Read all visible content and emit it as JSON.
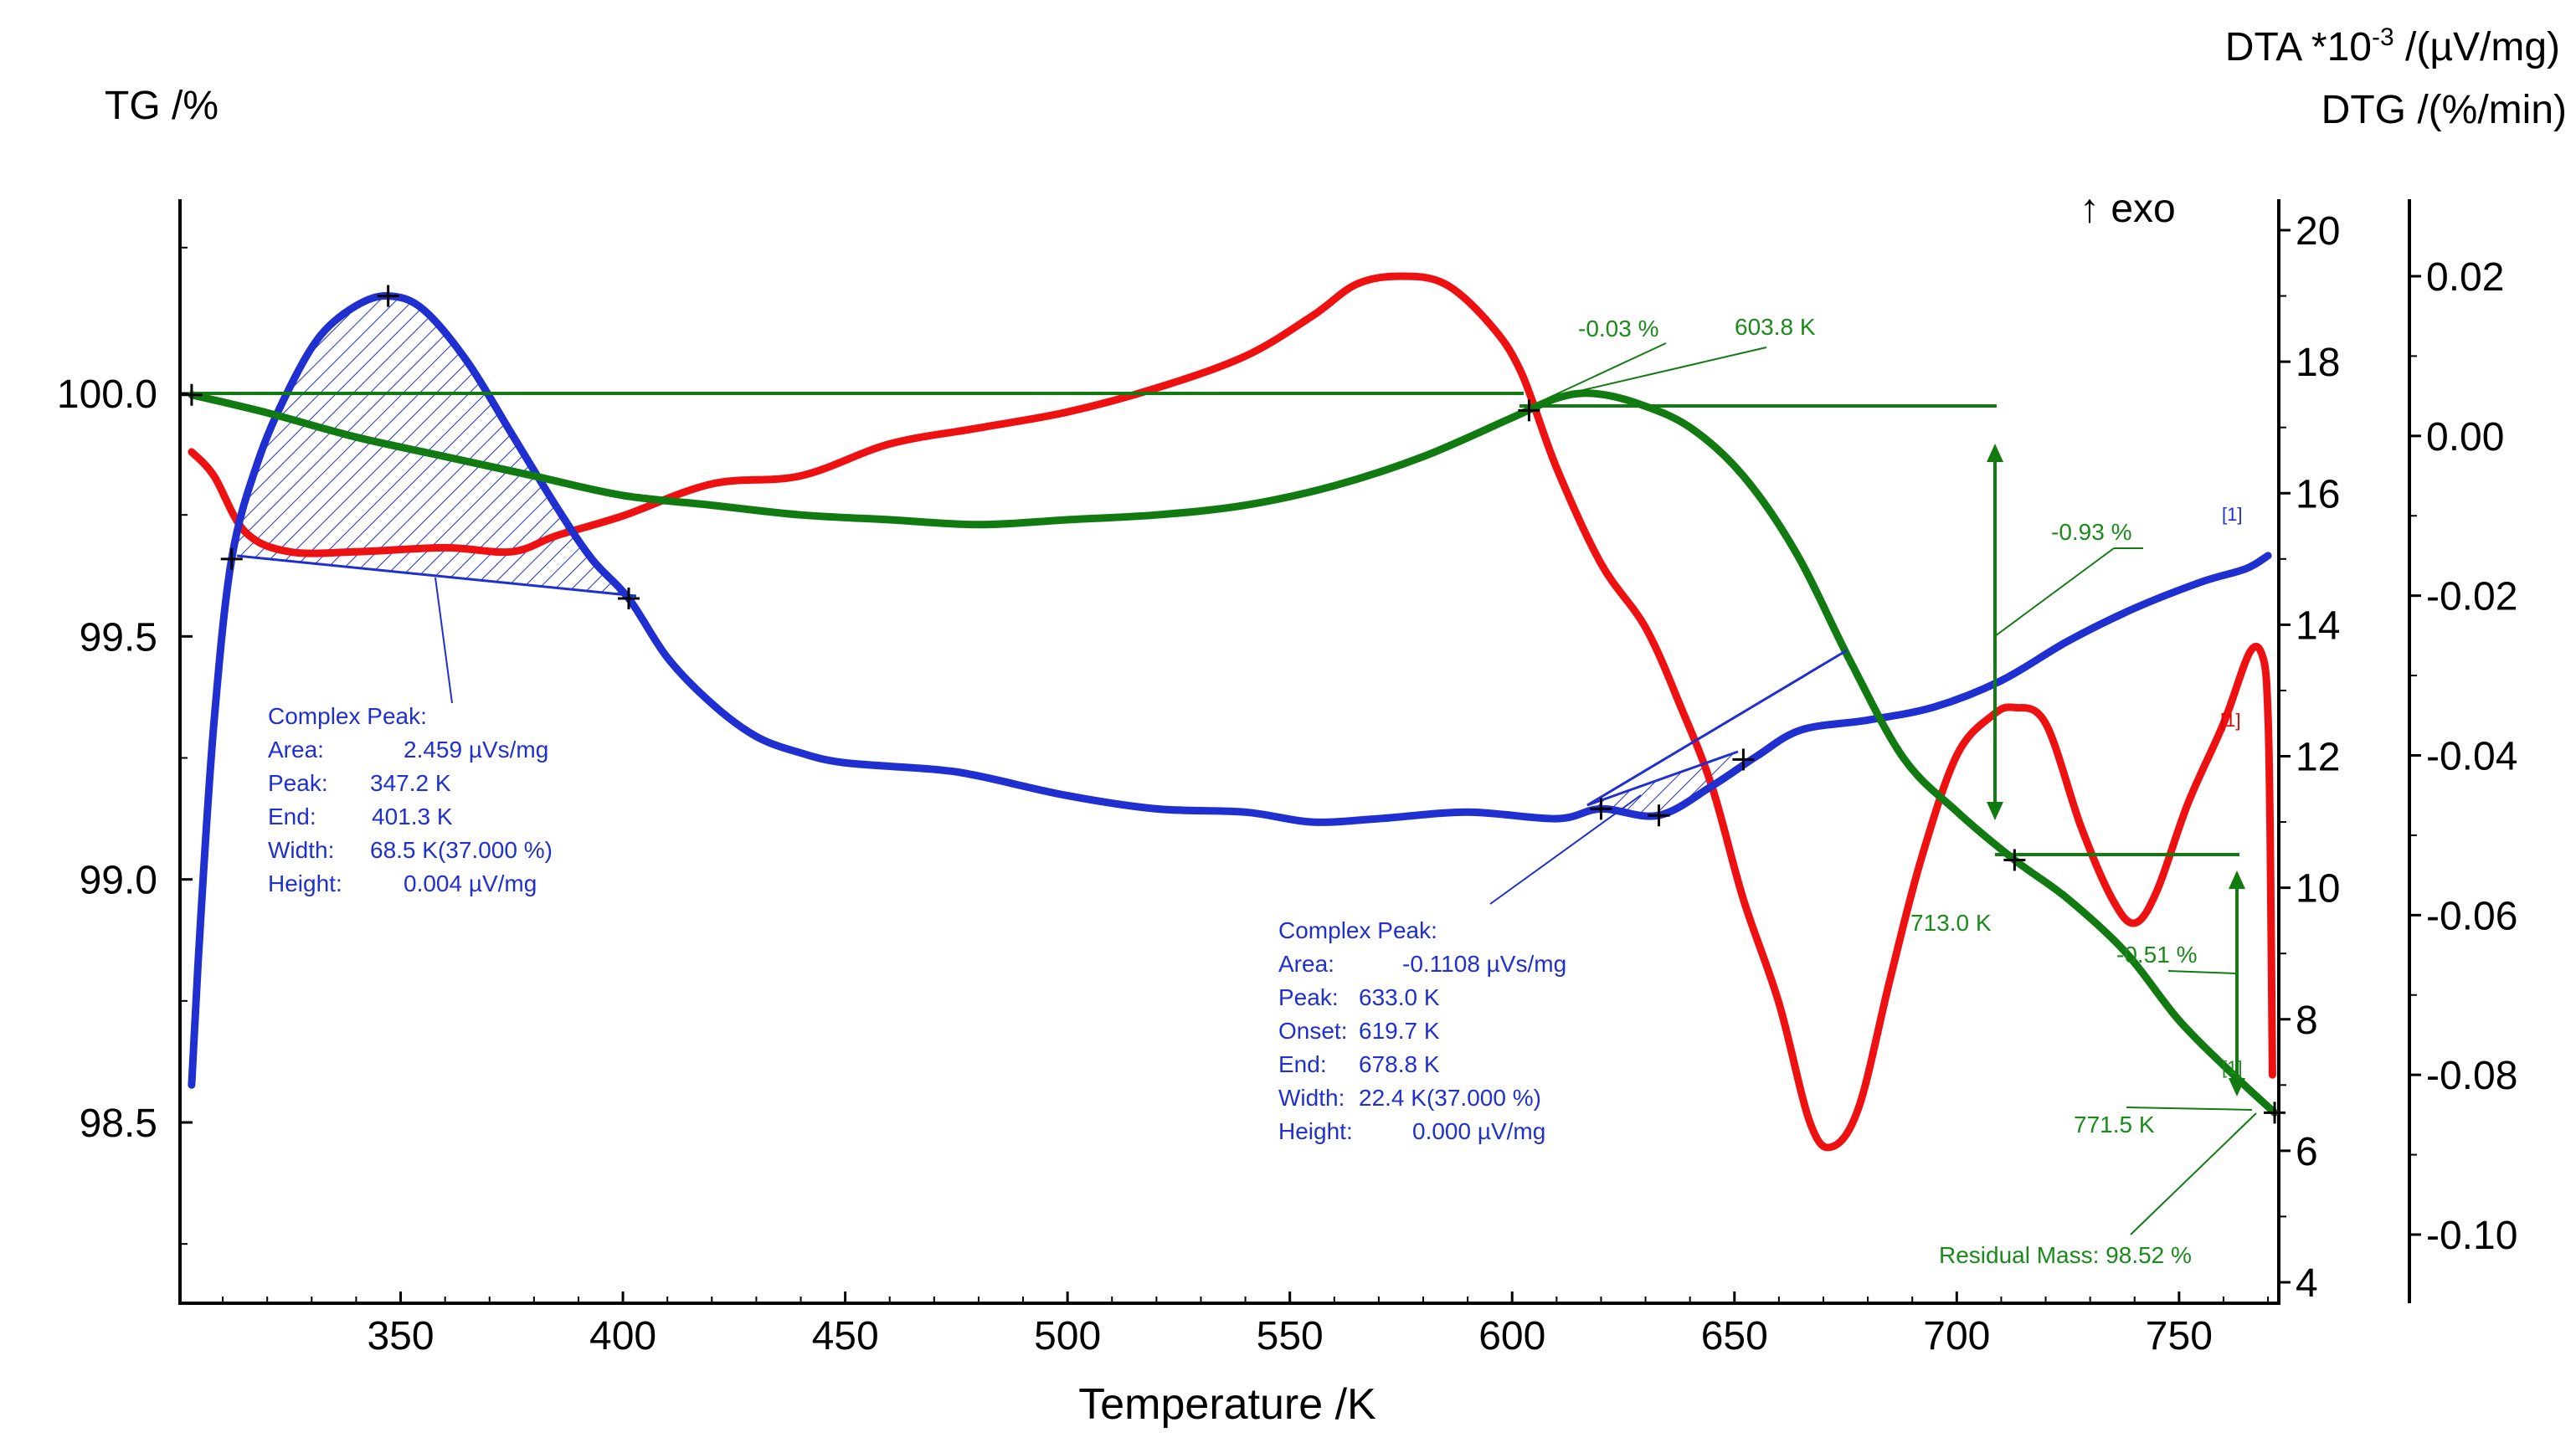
{
  "chart_data": {
    "type": "line",
    "xlabel": "Temperature /K",
    "x_ticks": [
      "350",
      "400",
      "450",
      "500",
      "550",
      "600",
      "650",
      "700",
      "750"
    ],
    "xlim": [
      300,
      773
    ],
    "axes": {
      "tg": {
        "title": "TG /%",
        "ticks": [
          "100.0",
          "99.5",
          "99.0",
          "98.5"
        ],
        "range": [
          98.2,
          100.4
        ]
      },
      "dta": {
        "title": "DTA *10-3 /(µV/mg)",
        "title_main": "DTA *10",
        "title_sup": "-3",
        "title_tail": " /(µV/mg)",
        "ticks": [
          "20",
          "18",
          "16",
          "14",
          "12",
          "10",
          "8",
          "6",
          "4"
        ],
        "range": [
          3.5,
          20.5
        ]
      },
      "dtg": {
        "title": "DTG /(%/min)",
        "ticks": [
          "0.02",
          "0.00",
          "-0.02",
          "-0.04",
          "-0.06",
          "-0.08",
          "-0.10"
        ],
        "range": [
          -0.113,
          0.028
        ]
      }
    },
    "exo_label": "↑ exo",
    "series": [
      {
        "name": "TG",
        "axis": "tg",
        "color": "#117a11",
        "points": [
          [
            303,
            99.997
          ],
          [
            320,
            99.96
          ],
          [
            340,
            99.91
          ],
          [
            360,
            99.87
          ],
          [
            380,
            99.83
          ],
          [
            400,
            99.79
          ],
          [
            420,
            99.77
          ],
          [
            440,
            99.75
          ],
          [
            460,
            99.74
          ],
          [
            480,
            99.73
          ],
          [
            500,
            99.74
          ],
          [
            520,
            99.75
          ],
          [
            540,
            99.77
          ],
          [
            560,
            99.81
          ],
          [
            580,
            99.87
          ],
          [
            600,
            99.95
          ],
          [
            610,
            99.99
          ],
          [
            618,
            100.0
          ],
          [
            628,
            99.98
          ],
          [
            640,
            99.93
          ],
          [
            652,
            99.83
          ],
          [
            664,
            99.67
          ],
          [
            676,
            99.45
          ],
          [
            688,
            99.25
          ],
          [
            700,
            99.14
          ],
          [
            713,
            99.04
          ],
          [
            725,
            98.96
          ],
          [
            738,
            98.85
          ],
          [
            750,
            98.71
          ],
          [
            762,
            98.6
          ],
          [
            771.5,
            98.52
          ]
        ]
      },
      {
        "name": "DTA",
        "axis": "dta",
        "color": "#1f2fd0",
        "points": [
          [
            303,
            7.0
          ],
          [
            305,
            9.5
          ],
          [
            308,
            12.5
          ],
          [
            312,
            15.0
          ],
          [
            318,
            16.5
          ],
          [
            325,
            17.6
          ],
          [
            332,
            18.4
          ],
          [
            340,
            18.85
          ],
          [
            347.2,
            19.0
          ],
          [
            355,
            18.8
          ],
          [
            365,
            18.0
          ],
          [
            375,
            16.9
          ],
          [
            385,
            15.8
          ],
          [
            393,
            15.0
          ],
          [
            401.3,
            14.4
          ],
          [
            410,
            13.5
          ],
          [
            420,
            12.8
          ],
          [
            430,
            12.3
          ],
          [
            440,
            12.05
          ],
          [
            450,
            11.9
          ],
          [
            470,
            11.8
          ],
          [
            480,
            11.7
          ],
          [
            500,
            11.4
          ],
          [
            520,
            11.2
          ],
          [
            540,
            11.15
          ],
          [
            555,
            11.0
          ],
          [
            570,
            11.05
          ],
          [
            590,
            11.15
          ],
          [
            610,
            11.05
          ],
          [
            620,
            11.2
          ],
          [
            633,
            11.1
          ],
          [
            645,
            11.55
          ],
          [
            655,
            12.0
          ],
          [
            665,
            12.4
          ],
          [
            680,
            12.55
          ],
          [
            695,
            12.75
          ],
          [
            710,
            13.15
          ],
          [
            725,
            13.75
          ],
          [
            740,
            14.25
          ],
          [
            755,
            14.65
          ],
          [
            765,
            14.85
          ],
          [
            770,
            15.05
          ]
        ]
      },
      {
        "name": "DTG",
        "axis": "dtg",
        "color": "#ee1111",
        "points": [
          [
            303,
            -0.002
          ],
          [
            308,
            -0.005
          ],
          [
            315,
            -0.012
          ],
          [
            325,
            -0.0145
          ],
          [
            340,
            -0.0145
          ],
          [
            360,
            -0.014
          ],
          [
            375,
            -0.0145
          ],
          [
            385,
            -0.0125
          ],
          [
            400,
            -0.01
          ],
          [
            420,
            -0.006
          ],
          [
            440,
            -0.005
          ],
          [
            460,
            -0.001
          ],
          [
            480,
            0.001
          ],
          [
            500,
            0.003
          ],
          [
            520,
            0.006
          ],
          [
            540,
            0.01
          ],
          [
            555,
            0.015
          ],
          [
            565,
            0.019
          ],
          [
            575,
            0.02
          ],
          [
            585,
            0.019
          ],
          [
            595,
            0.014
          ],
          [
            602,
            0.008
          ],
          [
            610,
            -0.004
          ],
          [
            620,
            -0.016
          ],
          [
            630,
            -0.024
          ],
          [
            638,
            -0.034
          ],
          [
            645,
            -0.044
          ],
          [
            652,
            -0.058
          ],
          [
            660,
            -0.071
          ],
          [
            667,
            -0.086
          ],
          [
            672,
            -0.089
          ],
          [
            678,
            -0.084
          ],
          [
            685,
            -0.068
          ],
          [
            692,
            -0.053
          ],
          [
            700,
            -0.04
          ],
          [
            708,
            -0.035
          ],
          [
            713,
            -0.034
          ],
          [
            720,
            -0.036
          ],
          [
            728,
            -0.049
          ],
          [
            735,
            -0.058
          ],
          [
            740,
            -0.061
          ],
          [
            745,
            -0.057
          ],
          [
            752,
            -0.046
          ],
          [
            760,
            -0.036
          ],
          [
            766,
            -0.027
          ],
          [
            769,
            -0.028
          ],
          [
            770,
            -0.035
          ],
          [
            770.5,
            -0.05
          ],
          [
            771,
            -0.08
          ]
        ]
      }
    ],
    "peak_area_1": {
      "baseline": [
        [
          312,
          99.66
        ],
        [
          401.3,
          99.58
        ]
      ]
    },
    "peak_area_2": {
      "baseline": [
        [
          620,
          99.13
        ],
        [
          652,
          99.25
        ]
      ],
      "extension": [
        [
          620,
          99.13
        ],
        [
          679,
          99.46
        ]
      ]
    },
    "annotations": {
      "tg_step1_pct": "-0.03 %",
      "tg_step1_temp": "603.8 K",
      "tg_step2_pct": "-0.93 %",
      "tg_step2_temp": "713.0 K",
      "tg_step3_pct": "-0.51 %",
      "tg_step3_temp": "771.5 K",
      "residual_mass": "Residual Mass: 98.52 %",
      "blue_end_marker": "[1]",
      "red_end_marker": "[1]",
      "green_end_marker": "[1]"
    },
    "peak_box_1": {
      "title": "Complex Peak:",
      "rows": [
        {
          "label": "Area:",
          "value": "2.459 µVs/mg"
        },
        {
          "label": "Peak:",
          "value": "347.2 K"
        },
        {
          "label": "End:",
          "value": "401.3 K"
        },
        {
          "label": "Width:",
          "value": "68.5 K(37.000 %)"
        },
        {
          "label": "Height:",
          "value": "0.004 µV/mg"
        }
      ]
    },
    "peak_box_2": {
      "title": "Complex Peak:",
      "rows": [
        {
          "label": "Area:",
          "value": "-0.1108 µVs/mg"
        },
        {
          "label": "Peak:",
          "value": "633.0 K"
        },
        {
          "label": "Onset:",
          "value": "619.7 K"
        },
        {
          "label": "End:",
          "value": "678.8 K"
        },
        {
          "label": "Width:",
          "value": "22.4 K(37.000 %)"
        },
        {
          "label": "Height:",
          "value": "0.000 µV/mg"
        }
      ]
    }
  }
}
